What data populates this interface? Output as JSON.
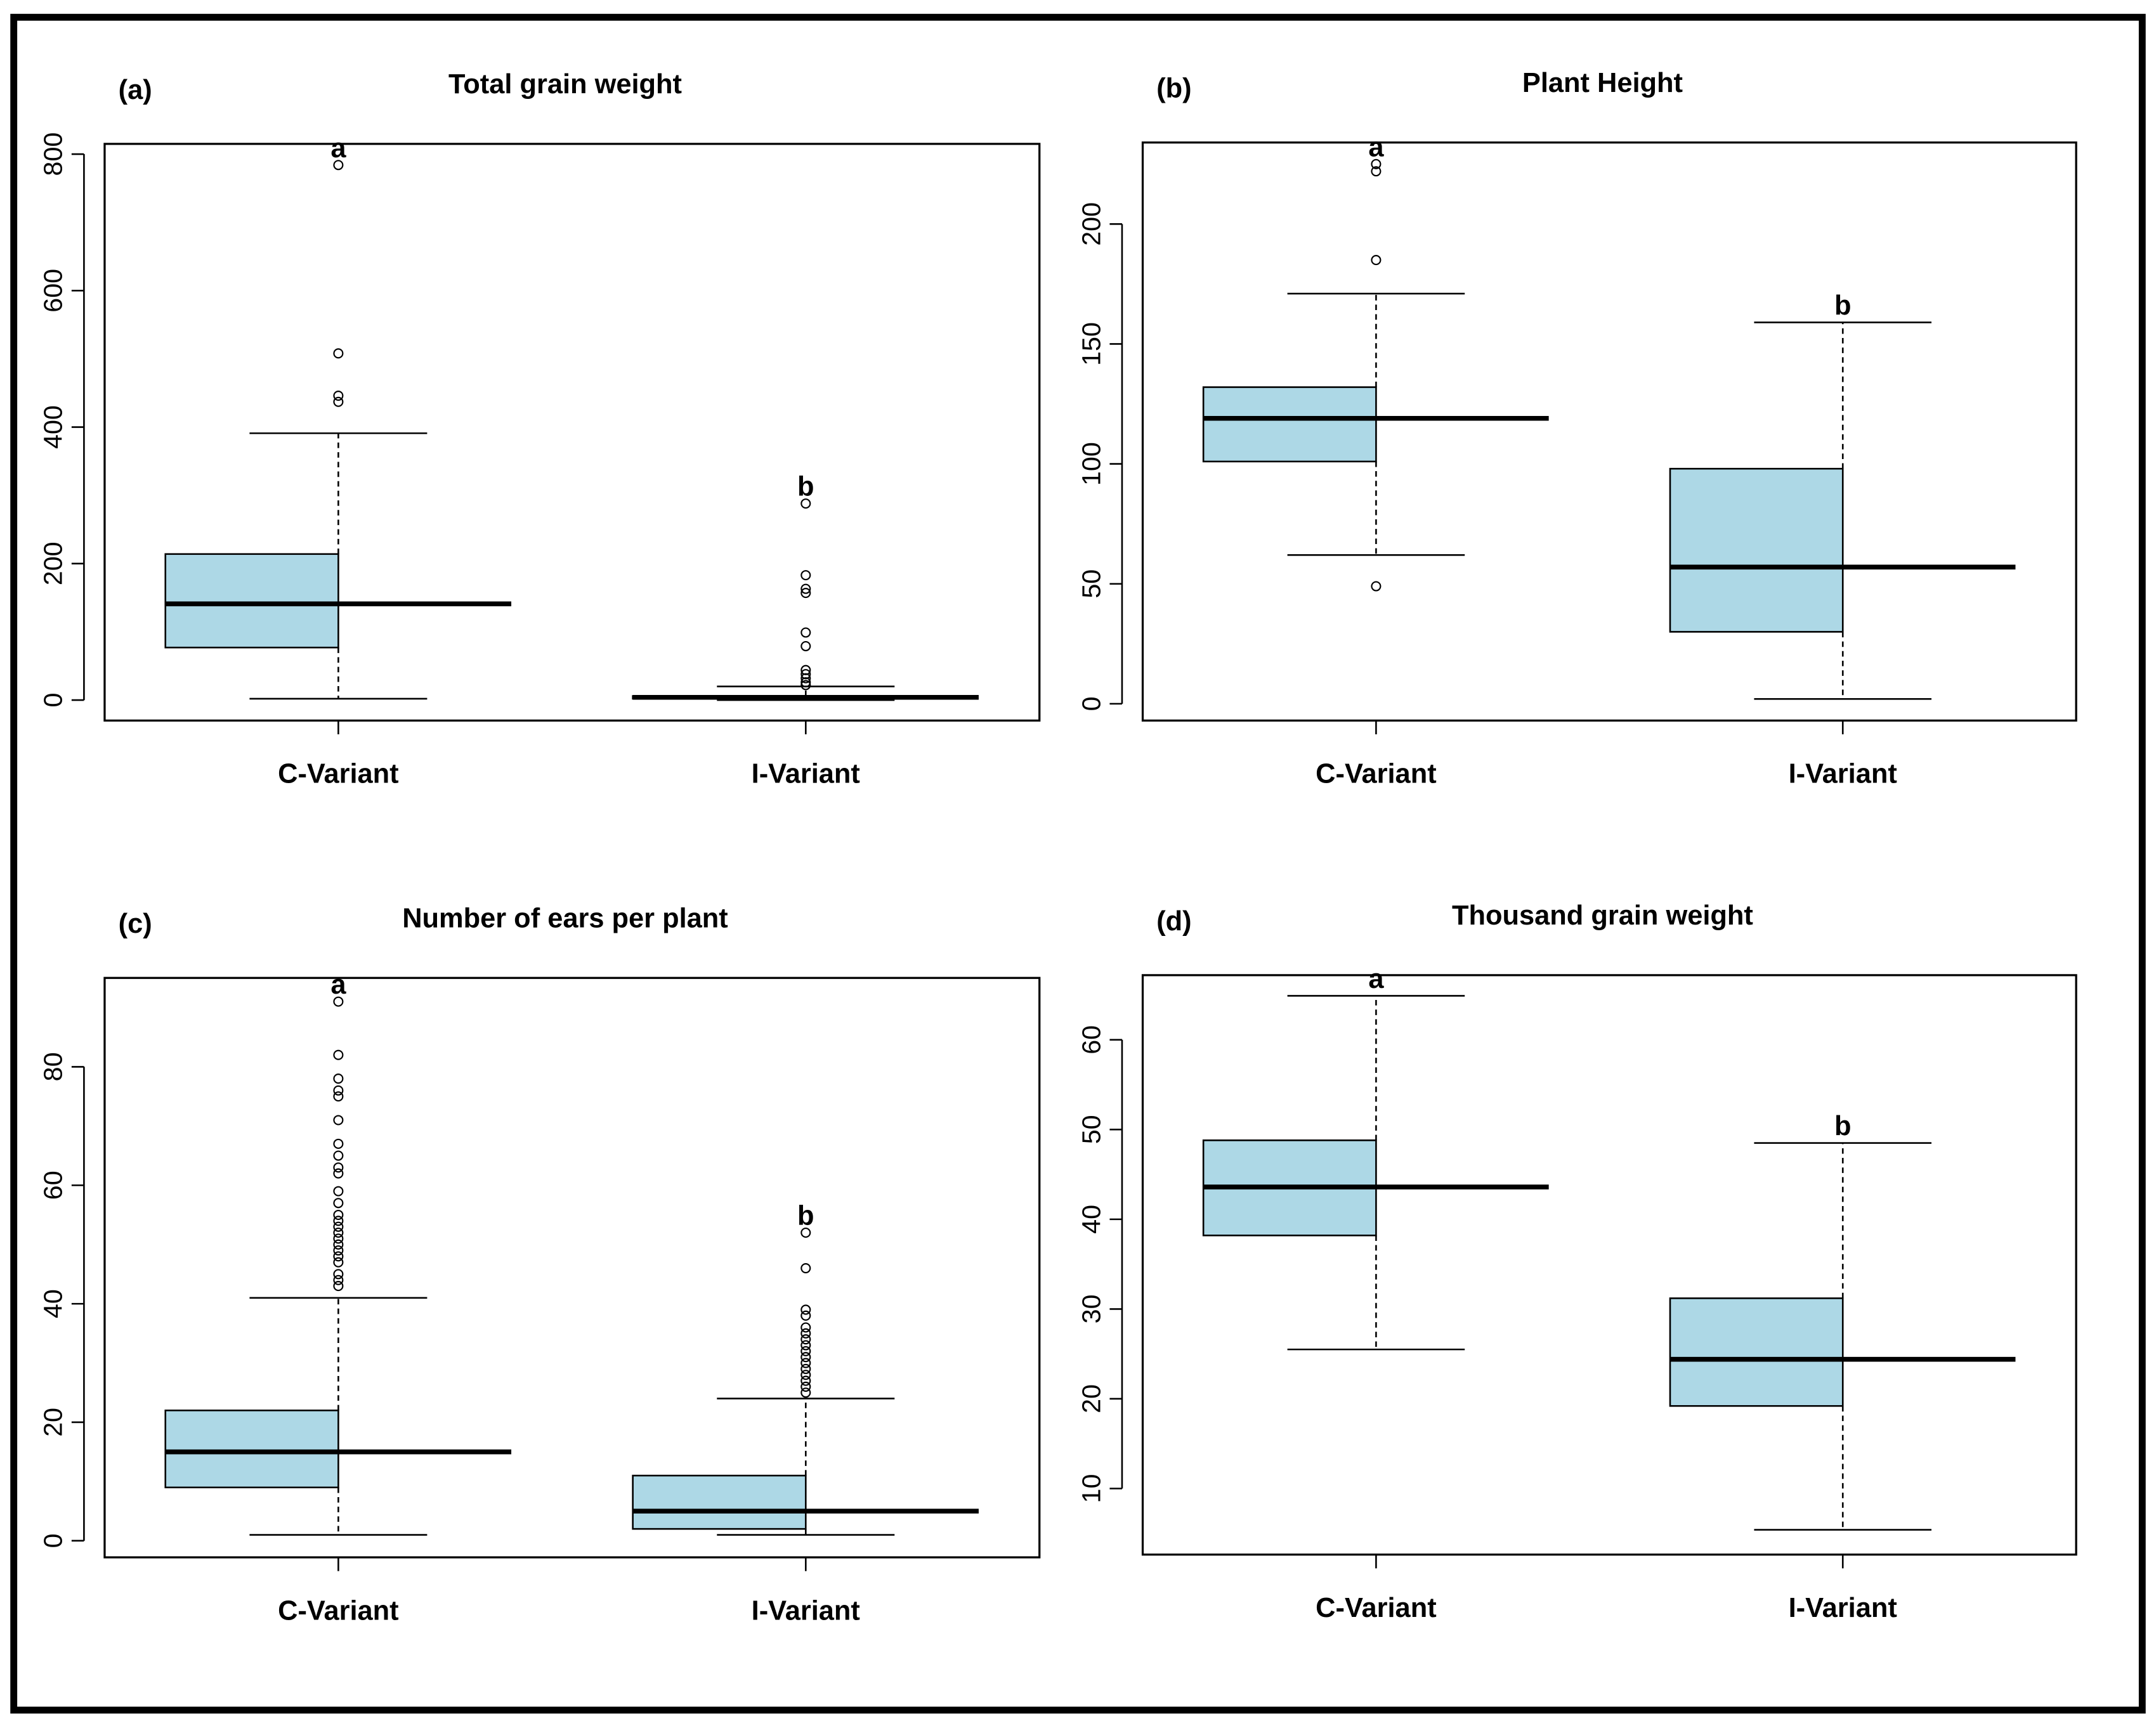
{
  "chart_data": [
    {
      "type": "box",
      "panel": "(a)",
      "title": "Total grain weight",
      "categories": [
        "C-Variant",
        "I-Variant"
      ],
      "color": "#add8e6",
      "ylim": [
        -30,
        815
      ],
      "yticks": [
        0,
        200,
        400,
        600,
        800
      ],
      "letters": [
        "a",
        "b"
      ],
      "boxes": [
        {
          "min": 2,
          "q1": 77,
          "median": 141,
          "q3": 214,
          "max": 391,
          "outliers": [
            437,
            446,
            508,
            784
          ]
        },
        {
          "min": 0,
          "q1": 2,
          "median": 4,
          "q3": 6,
          "max": 20,
          "outliers": [
            22,
            26,
            32,
            38,
            44,
            79,
            99,
            157,
            163,
            183,
            288
          ]
        }
      ]
    },
    {
      "type": "box",
      "panel": "(b)",
      "title": "Plant Height",
      "categories": [
        "C-Variant",
        "I-Variant"
      ],
      "color": "#add8e6",
      "ylim": [
        -7,
        234
      ],
      "yticks": [
        0,
        50,
        100,
        150,
        200
      ],
      "letters": [
        "a",
        "b"
      ],
      "boxes": [
        {
          "min": 62,
          "q1": 101,
          "median": 119,
          "q3": 132,
          "max": 171,
          "outliers": [
            49,
            185,
            222,
            225
          ]
        },
        {
          "min": 2,
          "q1": 30,
          "median": 57,
          "q3": 98,
          "max": 159,
          "outliers": []
        }
      ]
    },
    {
      "type": "box",
      "panel": "(c)",
      "title": "Number of ears per plant",
      "categories": [
        "C-Variant",
        "I-Variant"
      ],
      "color": "#add8e6",
      "ylim": [
        -2.8,
        95
      ],
      "yticks": [
        0,
        20,
        40,
        60,
        80
      ],
      "letters": [
        "a",
        "b"
      ],
      "boxes": [
        {
          "min": 1,
          "q1": 9,
          "median": 15,
          "q3": 22,
          "max": 41,
          "outliers": [
            43,
            44,
            45,
            47,
            48,
            49,
            50,
            51,
            52,
            53,
            54,
            55,
            57,
            59,
            62,
            63,
            65,
            67,
            71,
            75,
            76,
            78,
            82,
            91
          ]
        },
        {
          "min": 1,
          "q1": 2,
          "median": 5,
          "q3": 11,
          "max": 24,
          "outliers": [
            25,
            26,
            27,
            28,
            29,
            30,
            31,
            32,
            33,
            34,
            35,
            36,
            38,
            39,
            46,
            52
          ]
        }
      ]
    },
    {
      "type": "box",
      "panel": "(d)",
      "title": "Thousand grain weight",
      "categories": [
        "C-Variant",
        "I-Variant"
      ],
      "color": "#add8e6",
      "ylim": [
        2.64,
        67.2
      ],
      "yticks": [
        10,
        20,
        30,
        40,
        50,
        60
      ],
      "letters": [
        "a",
        "b"
      ],
      "boxes": [
        {
          "min": 25.5,
          "q1": 38.2,
          "median": 43.6,
          "q3": 48.8,
          "max": 64.9,
          "outliers": []
        },
        {
          "min": 5.4,
          "q1": 19.2,
          "median": 24.4,
          "q3": 31.2,
          "max": 48.5,
          "outliers": []
        }
      ]
    }
  ]
}
